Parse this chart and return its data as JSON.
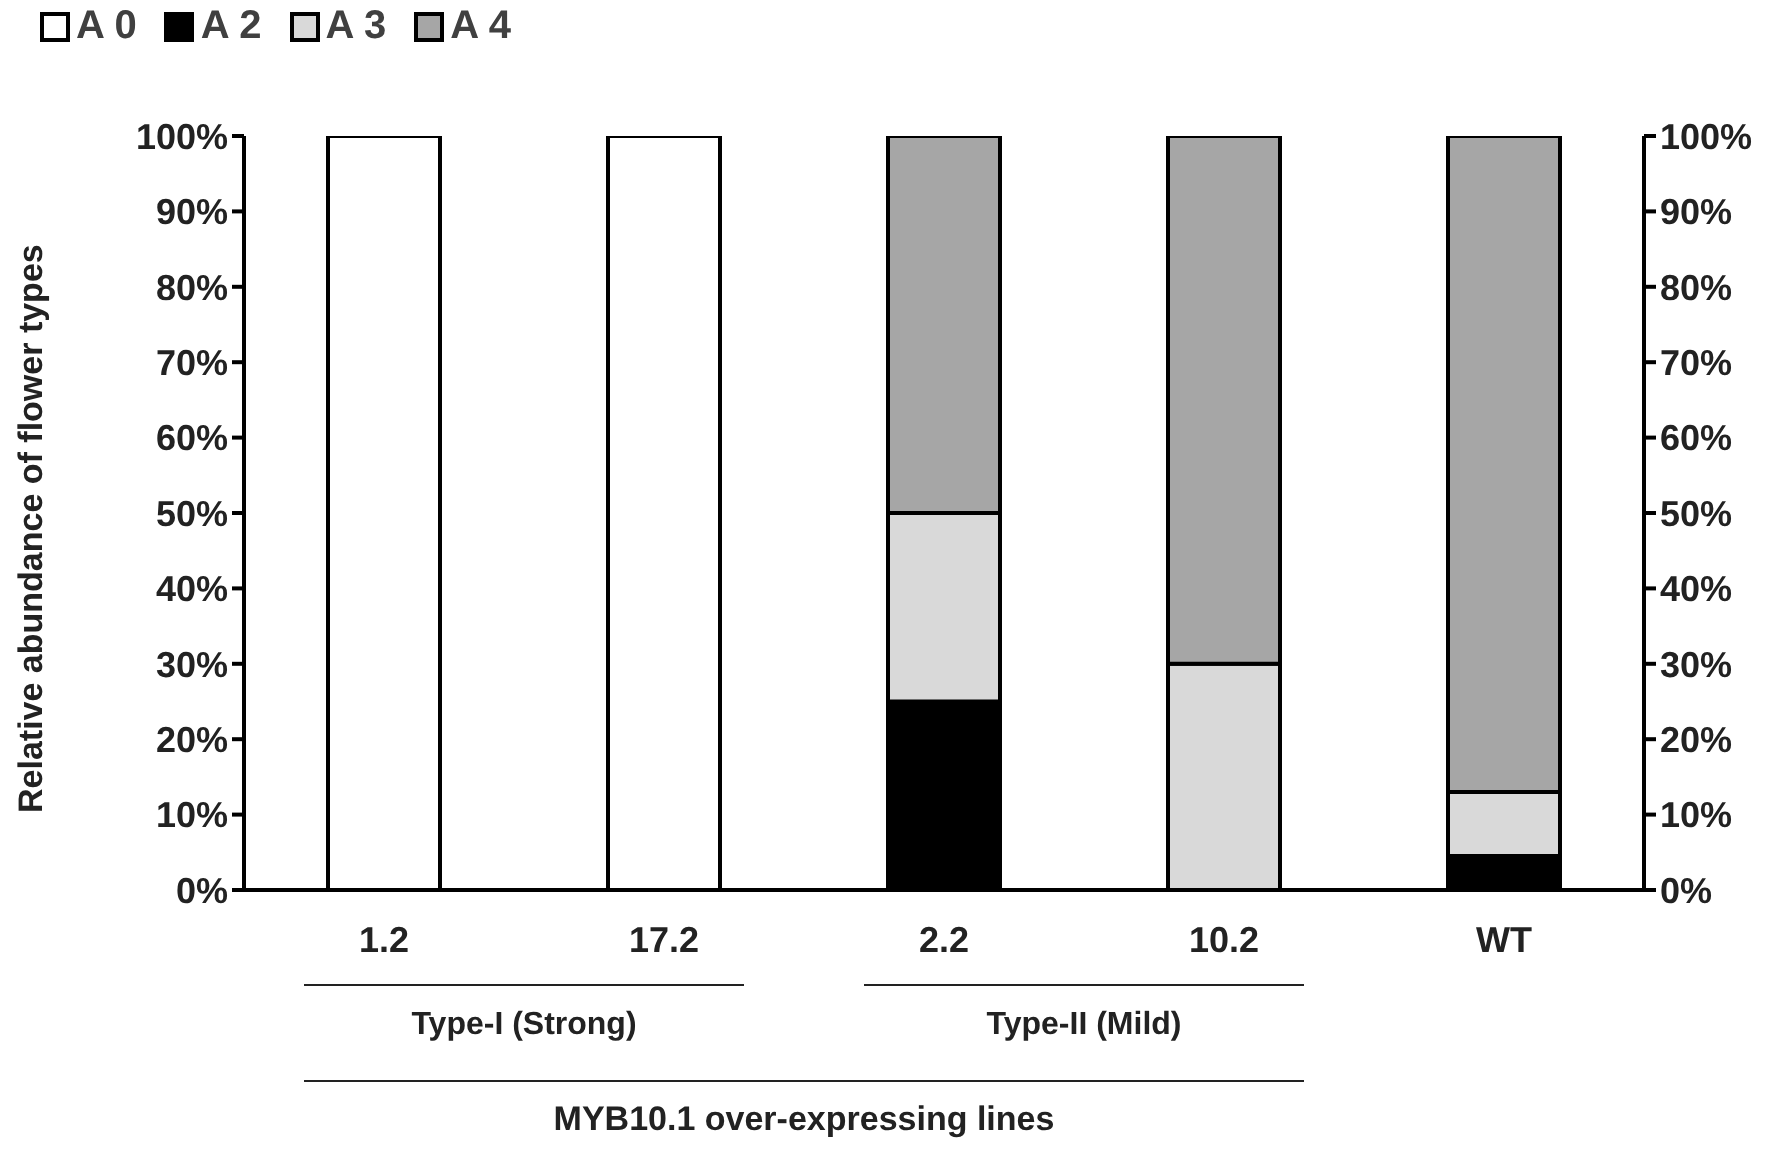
{
  "chart_data": {
    "type": "bar",
    "stacked": true,
    "ylabel": "Relative abundance of flower types",
    "xlabel": "MYB10.1 over-expressing lines",
    "annotations": [
      "Type-I (Strong)",
      "Type-II (Mild)"
    ],
    "categories": [
      "1.2",
      "17.2",
      "2.2",
      "10.2",
      "WT"
    ],
    "series": [
      {
        "name": "A 0",
        "color": "#ffffff",
        "values": [
          100,
          100,
          0,
          0,
          0
        ]
      },
      {
        "name": "A 2",
        "color": "#000000",
        "values": [
          0,
          0,
          25,
          0,
          4.5
        ]
      },
      {
        "name": "A 3",
        "color": "#d9d9d9",
        "values": [
          0,
          0,
          25,
          30,
          8.5
        ]
      },
      {
        "name": "A 4",
        "color": "#a6a6a6",
        "values": [
          0,
          0,
          50,
          70,
          87
        ]
      }
    ],
    "ylim": [
      0,
      100
    ],
    "yticks": [
      {
        "value": 0,
        "label": "0%"
      },
      {
        "value": 10,
        "label": "10%"
      },
      {
        "value": 20,
        "label": "20%"
      },
      {
        "value": 30,
        "label": "30%"
      },
      {
        "value": 40,
        "label": "40%"
      },
      {
        "value": 50,
        "label": "50%"
      },
      {
        "value": 60,
        "label": "60%"
      },
      {
        "value": 70,
        "label": "70%"
      },
      {
        "value": 80,
        "label": "80%"
      },
      {
        "value": 90,
        "label": "90%"
      },
      {
        "value": 100,
        "label": "100%"
      }
    ],
    "y2lim": [
      0,
      100
    ],
    "y2ticks": [
      {
        "value": 0,
        "label": "0%"
      },
      {
        "value": 10,
        "label": "10%"
      },
      {
        "value": 20,
        "label": "20%"
      },
      {
        "value": 30,
        "label": "30%"
      },
      {
        "value": 40,
        "label": "40%"
      },
      {
        "value": 50,
        "label": "50%"
      },
      {
        "value": 60,
        "label": "60%"
      },
      {
        "value": 70,
        "label": "70%"
      },
      {
        "value": 80,
        "label": "80%"
      },
      {
        "value": 90,
        "label": "90%"
      },
      {
        "value": 100,
        "label": "100%"
      }
    ],
    "grid": false,
    "legend": "top left"
  }
}
